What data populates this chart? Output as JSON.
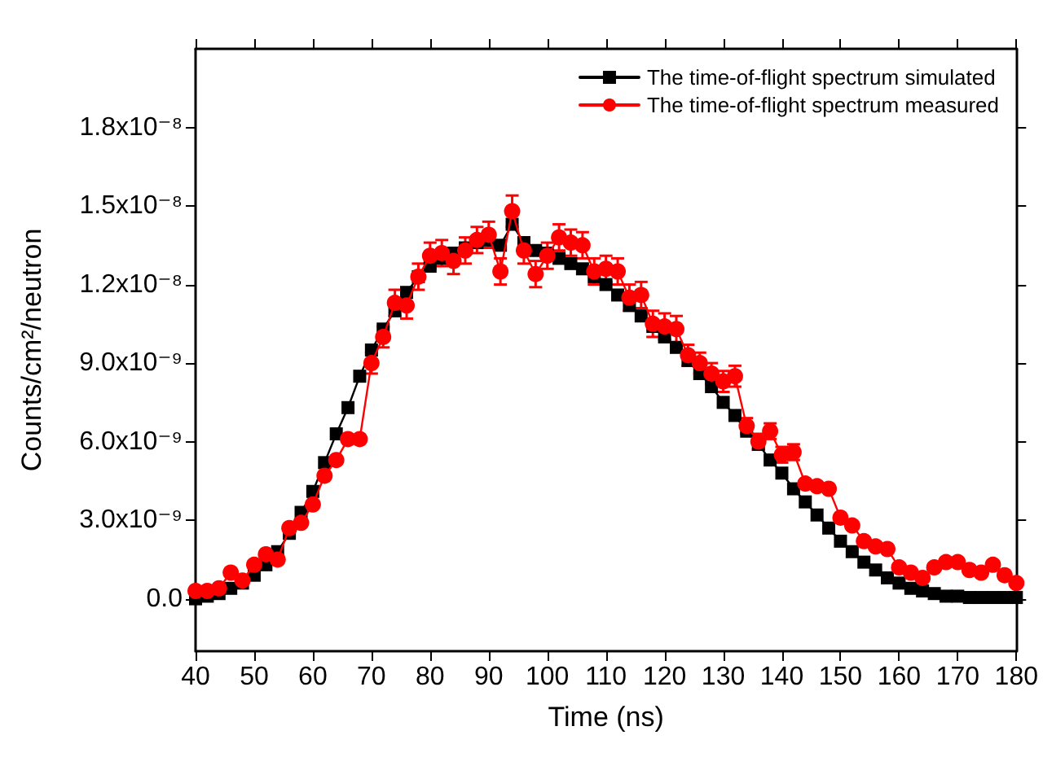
{
  "chart_data": {
    "type": "line",
    "xlabel": "Time (ns)",
    "ylabel": "Counts/cm²/neutron",
    "xlim": [
      40,
      180
    ],
    "xticks": [
      40,
      50,
      60,
      70,
      80,
      90,
      100,
      110,
      120,
      130,
      140,
      150,
      160,
      170,
      180
    ],
    "ylim": [
      -2e-09,
      2.1e-08
    ],
    "yticks": [
      {
        "value": 0,
        "label": "0.0"
      },
      {
        "value": 3e-09,
        "label": "3.0x10⁻⁹"
      },
      {
        "value": 6e-09,
        "label": "6.0x10⁻⁹"
      },
      {
        "value": 9e-09,
        "label": "9.0x10⁻⁹"
      },
      {
        "value": 1.2e-08,
        "label": "1.2x10⁻⁸"
      },
      {
        "value": 1.5e-08,
        "label": "1.5x10⁻⁸"
      },
      {
        "value": 1.8e-08,
        "label": "1.8x10⁻⁸"
      }
    ],
    "x": [
      40,
      42,
      44,
      46,
      48,
      50,
      52,
      54,
      56,
      58,
      60,
      62,
      64,
      66,
      68,
      70,
      72,
      74,
      76,
      78,
      80,
      82,
      84,
      86,
      88,
      90,
      92,
      94,
      96,
      98,
      100,
      102,
      104,
      106,
      108,
      110,
      112,
      114,
      116,
      118,
      120,
      122,
      124,
      126,
      128,
      130,
      132,
      134,
      136,
      138,
      140,
      142,
      144,
      146,
      148,
      150,
      152,
      154,
      156,
      158,
      160,
      162,
      164,
      166,
      168,
      170,
      172,
      174,
      176,
      178,
      180
    ],
    "legend": "top right",
    "grid": false,
    "series": [
      {
        "name": "The time-of-flight spectrum simulated",
        "color": "#000000",
        "marker": "square",
        "values": [
          0.0,
          1e-10,
          2e-10,
          4e-10,
          6e-10,
          9e-10,
          1.3e-09,
          1.8e-09,
          2.5e-09,
          3.3e-09,
          4.1e-09,
          5.2e-09,
          6.3e-09,
          7.3e-09,
          8.5e-09,
          9.5e-09,
          1.03e-08,
          1.1e-08,
          1.17e-08,
          1.23e-08,
          1.27e-08,
          1.3e-08,
          1.32e-08,
          1.34e-08,
          1.36e-08,
          1.37e-08,
          1.35e-08,
          1.43e-08,
          1.36e-08,
          1.33e-08,
          1.32e-08,
          1.3e-08,
          1.28e-08,
          1.26e-08,
          1.23e-08,
          1.2e-08,
          1.16e-08,
          1.12e-08,
          1.08e-08,
          1.04e-08,
          1e-08,
          9.6e-09,
          9.1e-09,
          8.6e-09,
          8.1e-09,
          7.5e-09,
          7e-09,
          6.4e-09,
          5.9e-09,
          5.3e-09,
          4.8e-09,
          4.2e-09,
          3.7e-09,
          3.2e-09,
          2.7e-09,
          2.2e-09,
          1.8e-09,
          1.4e-09,
          1.1e-09,
          8e-10,
          6e-10,
          4e-10,
          3e-10,
          2e-10,
          1e-10,
          1e-10,
          5e-11,
          5e-11,
          5e-11,
          5e-11,
          5e-11
        ]
      },
      {
        "name": "The time-of-flight spectrum measured",
        "color": "#ff0000",
        "marker": "circle",
        "values": [
          3e-10,
          3e-10,
          4e-10,
          1e-09,
          7e-10,
          1.3e-09,
          1.7e-09,
          1.5e-09,
          2.7e-09,
          2.9e-09,
          3.6e-09,
          4.7e-09,
          5.3e-09,
          6.1e-09,
          6.1e-09,
          9e-09,
          1e-08,
          1.13e-08,
          1.12e-08,
          1.23e-08,
          1.31e-08,
          1.32e-08,
          1.29e-08,
          1.33e-08,
          1.37e-08,
          1.39e-08,
          1.25e-08,
          1.48e-08,
          1.33e-08,
          1.24e-08,
          1.31e-08,
          1.38e-08,
          1.36e-08,
          1.35e-08,
          1.25e-08,
          1.26e-08,
          1.25e-08,
          1.15e-08,
          1.16e-08,
          1.05e-08,
          1.04e-08,
          1.03e-08,
          9.3e-09,
          9e-09,
          8.6e-09,
          8.3e-09,
          8.5e-09,
          6.6e-09,
          6e-09,
          6.4e-09,
          5.5e-09,
          5.6e-09,
          4.4e-09,
          4.3e-09,
          4.2e-09,
          3.1e-09,
          2.8e-09,
          2.2e-09,
          2e-09,
          1.9e-09,
          1.2e-09,
          1e-09,
          8e-10,
          1.2e-09,
          1.4e-09,
          1.4e-09,
          1.1e-09,
          1e-09,
          1.3e-09,
          9e-10,
          6e-10
        ],
        "errors": [
          null,
          null,
          null,
          null,
          null,
          null,
          null,
          null,
          null,
          null,
          null,
          null,
          null,
          null,
          null,
          4e-10,
          4e-10,
          5e-10,
          5e-10,
          5e-10,
          5e-10,
          5e-10,
          5e-10,
          5e-10,
          5e-10,
          5e-10,
          5e-10,
          6e-10,
          5e-10,
          5e-10,
          5e-10,
          5e-10,
          5e-10,
          5e-10,
          5e-10,
          5e-10,
          5e-10,
          5e-10,
          5e-10,
          5e-10,
          5e-10,
          5e-10,
          4e-10,
          4e-10,
          4e-10,
          4e-10,
          4e-10,
          3e-10,
          3e-10,
          3e-10,
          3e-10,
          3e-10,
          null,
          null,
          null,
          null,
          null,
          null,
          null,
          null,
          null,
          null,
          null,
          null,
          null,
          null,
          null,
          null,
          null,
          null,
          null
        ]
      }
    ]
  }
}
